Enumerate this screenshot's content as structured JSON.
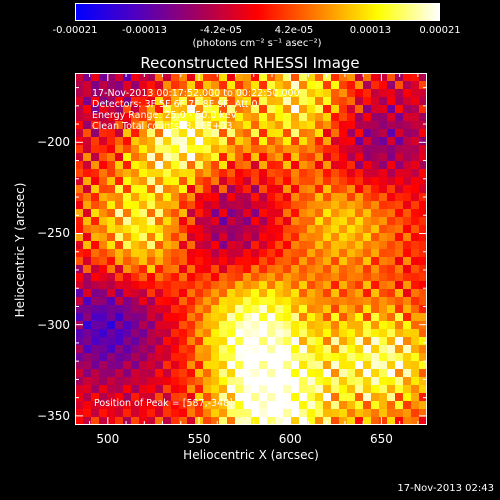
{
  "chart_data": {
    "type": "heatmap",
    "title": "Reconstructed RHESSI Image",
    "xlabel": "Heliocentric X (arcsec)",
    "ylabel": "Heliocentric Y (arcsec)",
    "xlim": [
      482,
      675
    ],
    "ylim": [
      -355,
      -162
    ],
    "x_ticks": [
      "500",
      "550",
      "600",
      "650"
    ],
    "x_tick_values": [
      500,
      550,
      600,
      650
    ],
    "y_ticks": [
      "-200",
      "-250",
      "-300",
      "-350"
    ],
    "y_tick_values": [
      -200,
      -250,
      -300,
      -350
    ],
    "colorbar": {
      "ticks": [
        "-0.00021",
        "-0.00013",
        "-4.2e-05",
        "4.2e-05",
        "0.00013",
        "0.00021"
      ],
      "tick_values": [
        -0.00021,
        -0.00013,
        -4.2e-05,
        4.2e-05,
        0.00013,
        0.00021
      ],
      "range": [
        -0.00021,
        0.00021
      ],
      "units_label": "(photons cm⁻² s⁻¹ asec⁻²)",
      "colors": [
        "#0000ff",
        "#5000c0",
        "#a00060",
        "#ff0000",
        "#ff8000",
        "#ffff00",
        "#ffffff"
      ]
    },
    "info_lines": [
      "17-Nov-2013 00:17:52.000 to 00:22:50.000",
      "Detectors: 3F 5F 6F 7F 8F 9F, Att 0",
      "Energy Range: 25.0 - 50.0 keV",
      "Clean      Total counts: 8.16E+03"
    ],
    "peak_label": "Position of Peak = [587,-348]",
    "peak_position": [
      587,
      -348
    ],
    "image_features": {
      "grid": "44x44",
      "bright_regions": [
        {
          "x": 540,
          "y": -195,
          "level": 0.95
        },
        {
          "x": 610,
          "y": -180,
          "level": 0.8
        },
        {
          "x": 520,
          "y": -250,
          "level": 0.75
        },
        {
          "x": 580,
          "y": -300,
          "level": 0.85
        },
        {
          "x": 650,
          "y": -320,
          "level": 0.8
        },
        {
          "x": 590,
          "y": -345,
          "level": 1.0
        },
        {
          "x": 630,
          "y": -240,
          "level": 0.6
        }
      ],
      "dark_regions": [
        {
          "x": 500,
          "y": -300,
          "level": -0.7
        },
        {
          "x": 640,
          "y": -200,
          "level": -0.65
        },
        {
          "x": 560,
          "y": -245,
          "level": -0.55
        },
        {
          "x": 510,
          "y": -170,
          "level": -0.5
        }
      ]
    }
  },
  "footer": {
    "timestamp": "17-Nov-2013 02:43"
  }
}
